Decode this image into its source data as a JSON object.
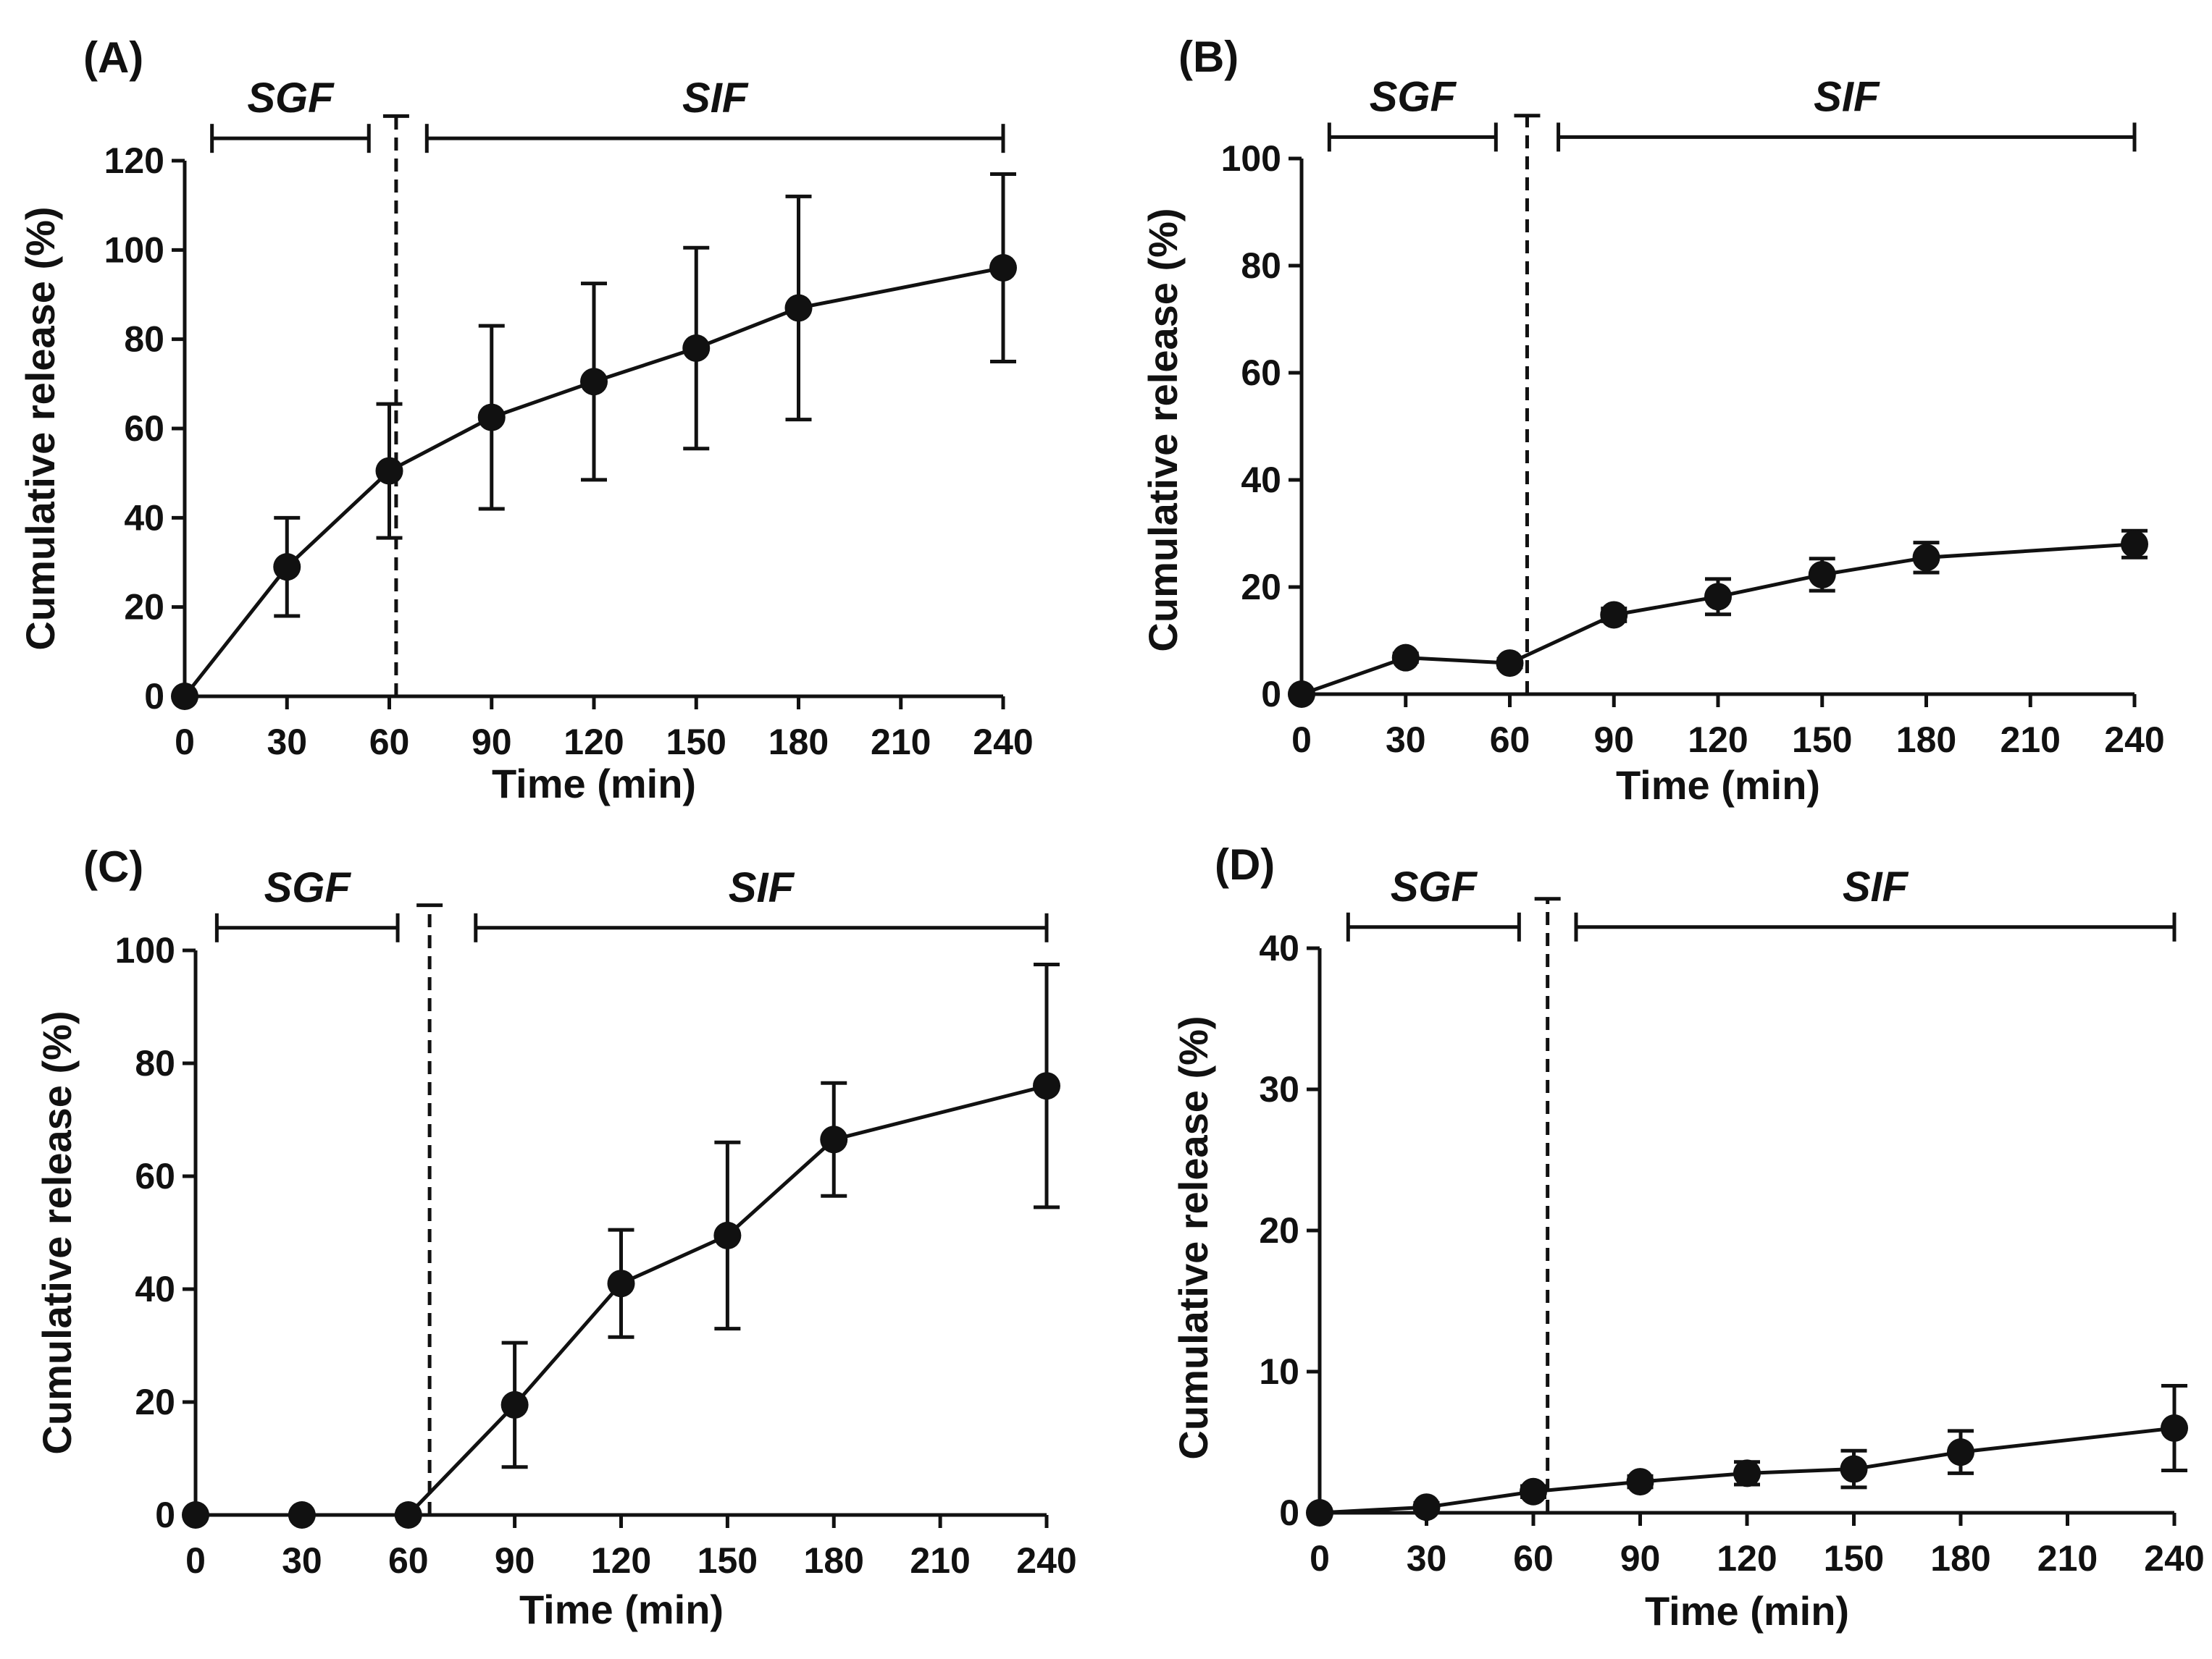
{
  "chart_data": [
    {
      "type": "line",
      "panel_label": "(A)",
      "xlabel": "Time (min)",
      "ylabel": "Cumulative release (%)",
      "xlim": [
        0,
        240
      ],
      "ylim": [
        0,
        120
      ],
      "xticks": [
        0,
        30,
        60,
        90,
        120,
        150,
        180,
        210,
        240
      ],
      "yticks": [
        0,
        20,
        40,
        60,
        80,
        100,
        120
      ],
      "x": [
        0,
        30,
        60,
        90,
        120,
        150,
        180,
        240
      ],
      "y": [
        0,
        29,
        50.5,
        62.5,
        70.5,
        78,
        87,
        96
      ],
      "error": [
        0,
        11,
        15,
        20.5,
        22,
        22.5,
        25,
        21
      ],
      "dashed_line_x": 62,
      "dashed_line_top": 130,
      "phases": [
        {
          "label": "SGF",
          "start": 8,
          "end": 54
        },
        {
          "label": "SIF",
          "start": 71,
          "end": 240
        }
      ],
      "phase_bar_y": 125,
      "grid": false
    },
    {
      "type": "line",
      "panel_label": "(B)",
      "xlabel": "Time (min)",
      "ylabel": "Cumulative release (%)",
      "xlim": [
        0,
        240
      ],
      "ylim": [
        0,
        100
      ],
      "xticks": [
        0,
        30,
        60,
        90,
        120,
        150,
        180,
        210,
        240
      ],
      "yticks": [
        0,
        20,
        40,
        60,
        80,
        100
      ],
      "x": [
        0,
        30,
        60,
        90,
        120,
        150,
        180,
        240
      ],
      "y": [
        0,
        6.8,
        5.8,
        14.8,
        18.2,
        22.3,
        25.5,
        28
      ],
      "error": [
        0,
        0.8,
        0.8,
        1.2,
        3.3,
        3,
        2.8,
        2.5
      ],
      "dashed_line_x": 65,
      "dashed_line_top": 108,
      "phases": [
        {
          "label": "SGF",
          "start": 8,
          "end": 56
        },
        {
          "label": "SIF",
          "start": 74,
          "end": 240
        }
      ],
      "phase_bar_y": 104,
      "grid": false
    },
    {
      "type": "line",
      "panel_label": "(C)",
      "xlabel": "Time (min)",
      "ylabel": "Cumulative release (%)",
      "xlim": [
        0,
        240
      ],
      "ylim": [
        0,
        100
      ],
      "xticks": [
        0,
        30,
        60,
        90,
        120,
        150,
        180,
        210,
        240
      ],
      "yticks": [
        0,
        20,
        40,
        60,
        80,
        100
      ],
      "x": [
        0,
        30,
        60,
        90,
        120,
        150,
        180,
        240
      ],
      "y": [
        0,
        0,
        0,
        19.5,
        41,
        49.5,
        66.5,
        76
      ],
      "error": [
        0,
        0,
        0,
        11,
        9.5,
        16.5,
        10,
        21.5
      ],
      "dashed_line_x": 66,
      "dashed_line_top": 108,
      "phases": [
        {
          "label": "SGF",
          "start": 6,
          "end": 57
        },
        {
          "label": "SIF",
          "start": 79,
          "end": 240
        }
      ],
      "phase_bar_y": 104,
      "grid": false
    },
    {
      "type": "line",
      "panel_label": "(D)",
      "xlabel": "Time (min)",
      "ylabel": "Cumulative release (%)",
      "xlim": [
        0,
        240
      ],
      "ylim": [
        0,
        40
      ],
      "xticks": [
        0,
        30,
        60,
        90,
        120,
        150,
        180,
        210,
        240
      ],
      "yticks": [
        0,
        10,
        20,
        30,
        40
      ],
      "x": [
        0,
        30,
        60,
        90,
        120,
        150,
        180,
        240
      ],
      "y": [
        0,
        0.4,
        1.5,
        2.2,
        2.8,
        3.1,
        4.3,
        6
      ],
      "error": [
        0,
        0.3,
        0.4,
        0.4,
        0.8,
        1.3,
        1.5,
        3
      ],
      "dashed_line_x": 64,
      "dashed_line_top": 43.5,
      "phases": [
        {
          "label": "SGF",
          "start": 8,
          "end": 56
        },
        {
          "label": "SIF",
          "start": 72,
          "end": 240
        }
      ],
      "phase_bar_y": 41.5,
      "grid": false
    }
  ]
}
